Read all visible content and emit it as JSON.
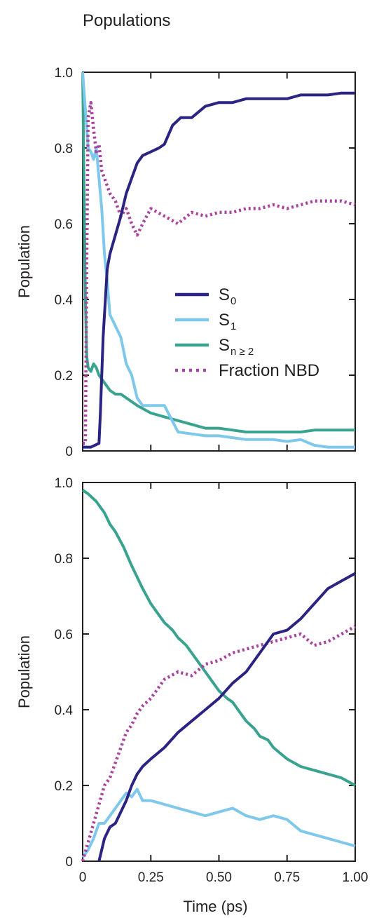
{
  "title": "Populations",
  "colors": {
    "S0": "#2b2482",
    "S1": "#7ec8ec",
    "Sn": "#3aa38f",
    "NBD": "#a8449f",
    "axis": "#231f20"
  },
  "chart_data": [
    {
      "type": "line",
      "ylabel": "Population",
      "xlabel": "",
      "xlim": [
        0,
        1.0
      ],
      "ylim": [
        0,
        1.0
      ],
      "yticks": [
        {
          "value": 0,
          "label": "0"
        },
        {
          "value": 0.2,
          "label": "0.2"
        },
        {
          "value": 0.4,
          "label": "0.4"
        },
        {
          "value": 0.6,
          "label": "0.6"
        },
        {
          "value": 0.8,
          "label": "0.8"
        },
        {
          "value": 1.0,
          "label": "1.0"
        }
      ],
      "xticks": [
        0,
        0.25,
        0.5,
        0.75,
        1.0
      ],
      "legend": {
        "placement": "center-right",
        "entries": [
          {
            "main": "S",
            "sub": "0",
            "series": "S0",
            "style": "solid"
          },
          {
            "main": "S",
            "sub": "1",
            "series": "S1",
            "style": "solid"
          },
          {
            "main": "S",
            "sub": "n ≥ 2",
            "series": "Sn",
            "style": "solid"
          },
          {
            "main": "Fraction NBD",
            "sub": "",
            "series": "NBD",
            "style": "dotted"
          }
        ]
      },
      "series": [
        {
          "key": "S0",
          "style": "solid",
          "x": [
            0,
            0.03,
            0.06,
            0.065,
            0.075,
            0.09,
            0.1,
            0.12,
            0.14,
            0.16,
            0.18,
            0.2,
            0.22,
            0.25,
            0.28,
            0.3,
            0.33,
            0.36,
            0.4,
            0.45,
            0.5,
            0.55,
            0.6,
            0.65,
            0.7,
            0.75,
            0.8,
            0.85,
            0.9,
            0.95,
            1.0
          ],
          "y": [
            0.01,
            0.01,
            0.02,
            0.1,
            0.3,
            0.48,
            0.52,
            0.57,
            0.62,
            0.68,
            0.72,
            0.76,
            0.78,
            0.79,
            0.8,
            0.81,
            0.86,
            0.88,
            0.88,
            0.91,
            0.92,
            0.92,
            0.93,
            0.93,
            0.93,
            0.93,
            0.94,
            0.94,
            0.94,
            0.945,
            0.945
          ]
        },
        {
          "key": "S1",
          "style": "solid",
          "x": [
            0,
            0.01,
            0.02,
            0.03,
            0.04,
            0.05,
            0.06,
            0.07,
            0.08,
            0.09,
            0.1,
            0.12,
            0.14,
            0.16,
            0.18,
            0.2,
            0.22,
            0.25,
            0.3,
            0.35,
            0.4,
            0.45,
            0.5,
            0.55,
            0.6,
            0.65,
            0.7,
            0.75,
            0.8,
            0.85,
            0.9,
            0.95,
            1.0
          ],
          "y": [
            1.0,
            0.9,
            0.8,
            0.79,
            0.77,
            0.8,
            0.72,
            0.64,
            0.52,
            0.45,
            0.36,
            0.33,
            0.3,
            0.23,
            0.2,
            0.14,
            0.12,
            0.12,
            0.12,
            0.05,
            0.045,
            0.04,
            0.04,
            0.035,
            0.03,
            0.03,
            0.03,
            0.025,
            0.03,
            0.015,
            0.01,
            0.01,
            0.01
          ]
        },
        {
          "key": "Sn",
          "style": "solid",
          "x": [
            0,
            0.005,
            0.01,
            0.015,
            0.02,
            0.03,
            0.04,
            0.05,
            0.06,
            0.08,
            0.1,
            0.12,
            0.14,
            0.16,
            0.2,
            0.25,
            0.3,
            0.35,
            0.4,
            0.45,
            0.5,
            0.55,
            0.6,
            0.65,
            0.7,
            0.75,
            0.8,
            0.85,
            0.9,
            0.95,
            1.0
          ],
          "y": [
            1.0,
            0.7,
            0.4,
            0.25,
            0.22,
            0.21,
            0.23,
            0.22,
            0.2,
            0.18,
            0.16,
            0.15,
            0.15,
            0.14,
            0.12,
            0.1,
            0.09,
            0.08,
            0.07,
            0.06,
            0.06,
            0.055,
            0.05,
            0.05,
            0.05,
            0.05,
            0.05,
            0.055,
            0.055,
            0.055,
            0.055
          ]
        },
        {
          "key": "NBD",
          "style": "dotted",
          "x": [
            0,
            0.01,
            0.015,
            0.02,
            0.03,
            0.04,
            0.05,
            0.06,
            0.07,
            0.08,
            0.09,
            0.1,
            0.12,
            0.14,
            0.16,
            0.18,
            0.2,
            0.22,
            0.25,
            0.3,
            0.35,
            0.4,
            0.45,
            0.5,
            0.55,
            0.6,
            0.65,
            0.7,
            0.75,
            0.8,
            0.85,
            0.9,
            0.95,
            1.0
          ],
          "y": [
            0.02,
            0.02,
            0.5,
            0.88,
            0.92,
            0.85,
            0.79,
            0.81,
            0.74,
            0.72,
            0.7,
            0.68,
            0.66,
            0.62,
            0.64,
            0.6,
            0.57,
            0.6,
            0.64,
            0.62,
            0.6,
            0.63,
            0.62,
            0.63,
            0.63,
            0.64,
            0.64,
            0.65,
            0.64,
            0.65,
            0.66,
            0.66,
            0.66,
            0.65
          ]
        }
      ]
    },
    {
      "type": "line",
      "ylabel": "Population",
      "xlabel": "Time (ps)",
      "xlim": [
        0,
        1.0
      ],
      "ylim": [
        0,
        1.0
      ],
      "yticks": [
        {
          "value": 0,
          "label": "0"
        },
        {
          "value": 0.2,
          "label": "0.2"
        },
        {
          "value": 0.4,
          "label": "0.4"
        },
        {
          "value": 0.6,
          "label": "0.6"
        },
        {
          "value": 0.8,
          "label": "0.8"
        },
        {
          "value": 1.0,
          "label": "1.0"
        }
      ],
      "xticks": [
        {
          "value": 0,
          "label": "0"
        },
        {
          "value": 0.25,
          "label": "0.25"
        },
        {
          "value": 0.5,
          "label": "0.50"
        },
        {
          "value": 0.75,
          "label": "0.75"
        },
        {
          "value": 1.0,
          "label": "1.00"
        }
      ],
      "series": [
        {
          "key": "S0",
          "style": "solid",
          "x": [
            0.06,
            0.07,
            0.08,
            0.1,
            0.12,
            0.14,
            0.16,
            0.18,
            0.2,
            0.22,
            0.25,
            0.3,
            0.35,
            0.4,
            0.45,
            0.5,
            0.55,
            0.6,
            0.65,
            0.7,
            0.75,
            0.8,
            0.85,
            0.9,
            0.95,
            1.0
          ],
          "y": [
            0.0,
            0.03,
            0.06,
            0.09,
            0.1,
            0.13,
            0.16,
            0.2,
            0.23,
            0.25,
            0.27,
            0.3,
            0.34,
            0.37,
            0.4,
            0.43,
            0.47,
            0.5,
            0.55,
            0.6,
            0.61,
            0.64,
            0.68,
            0.72,
            0.74,
            0.76
          ]
        },
        {
          "key": "S1",
          "style": "solid",
          "x": [
            0,
            0.02,
            0.04,
            0.06,
            0.08,
            0.1,
            0.12,
            0.14,
            0.16,
            0.18,
            0.2,
            0.22,
            0.25,
            0.3,
            0.35,
            0.4,
            0.45,
            0.5,
            0.55,
            0.6,
            0.65,
            0.7,
            0.75,
            0.8,
            0.85,
            0.9,
            0.95,
            1.0
          ],
          "y": [
            0.01,
            0.03,
            0.06,
            0.1,
            0.1,
            0.12,
            0.14,
            0.16,
            0.18,
            0.17,
            0.19,
            0.16,
            0.16,
            0.15,
            0.14,
            0.13,
            0.12,
            0.13,
            0.14,
            0.12,
            0.11,
            0.12,
            0.11,
            0.08,
            0.07,
            0.06,
            0.05,
            0.04
          ]
        },
        {
          "key": "Sn",
          "style": "solid",
          "x": [
            0,
            0.02,
            0.05,
            0.08,
            0.1,
            0.12,
            0.15,
            0.18,
            0.2,
            0.22,
            0.25,
            0.28,
            0.3,
            0.33,
            0.35,
            0.38,
            0.4,
            0.43,
            0.45,
            0.48,
            0.5,
            0.53,
            0.55,
            0.58,
            0.6,
            0.63,
            0.65,
            0.68,
            0.7,
            0.75,
            0.8,
            0.85,
            0.9,
            0.95,
            1.0
          ],
          "y": [
            0.98,
            0.97,
            0.95,
            0.92,
            0.89,
            0.87,
            0.83,
            0.78,
            0.75,
            0.72,
            0.68,
            0.65,
            0.63,
            0.61,
            0.59,
            0.57,
            0.55,
            0.52,
            0.5,
            0.47,
            0.45,
            0.43,
            0.42,
            0.39,
            0.37,
            0.35,
            0.33,
            0.32,
            0.3,
            0.27,
            0.25,
            0.24,
            0.23,
            0.22,
            0.2
          ]
        },
        {
          "key": "NBD",
          "style": "dotted",
          "x": [
            0,
            0.02,
            0.04,
            0.06,
            0.08,
            0.1,
            0.12,
            0.14,
            0.16,
            0.18,
            0.2,
            0.22,
            0.25,
            0.28,
            0.3,
            0.35,
            0.4,
            0.45,
            0.5,
            0.55,
            0.6,
            0.65,
            0.7,
            0.75,
            0.8,
            0.85,
            0.9,
            0.95,
            1.0
          ],
          "y": [
            0.0,
            0.05,
            0.1,
            0.15,
            0.2,
            0.22,
            0.26,
            0.3,
            0.34,
            0.36,
            0.39,
            0.41,
            0.43,
            0.46,
            0.48,
            0.5,
            0.49,
            0.52,
            0.53,
            0.55,
            0.56,
            0.57,
            0.58,
            0.59,
            0.6,
            0.57,
            0.58,
            0.6,
            0.62
          ]
        }
      ]
    }
  ]
}
